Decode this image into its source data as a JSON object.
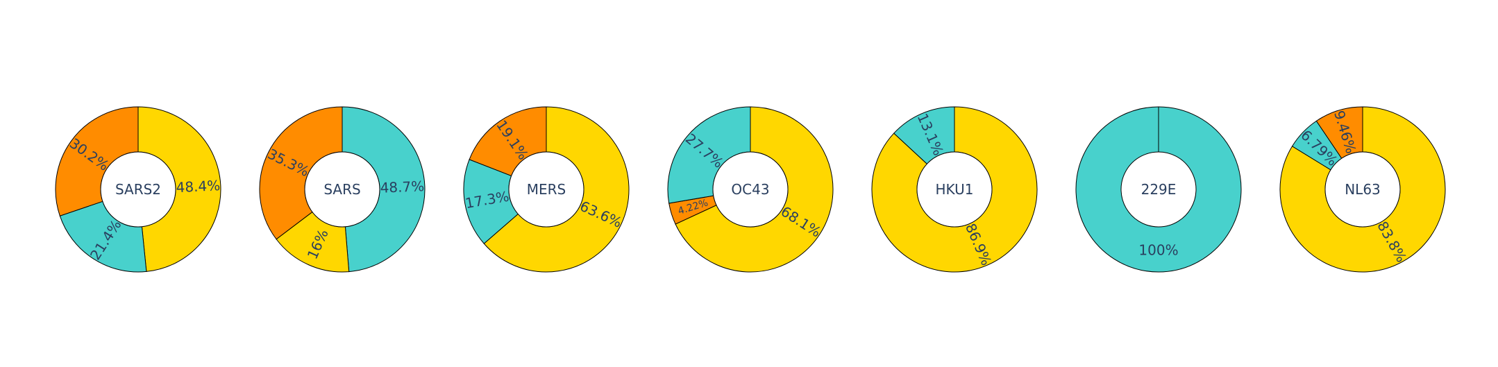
{
  "chart_data": [
    {
      "type": "pie",
      "hole": true,
      "center_label": "SARS2",
      "slices": [
        {
          "value": 48.4,
          "label": "48.4%",
          "color": "#FFD700"
        },
        {
          "value": 21.4,
          "label": "21.4%",
          "color": "#48D1CC"
        },
        {
          "value": 30.2,
          "label": "30.2%",
          "color": "#FF8C00"
        }
      ]
    },
    {
      "type": "pie",
      "hole": true,
      "center_label": "SARS",
      "slices": [
        {
          "value": 48.7,
          "label": "48.7%",
          "color": "#48D1CC"
        },
        {
          "value": 16,
          "label": "16%",
          "color": "#FFD700"
        },
        {
          "value": 35.3,
          "label": "35.3%",
          "color": "#FF8C00"
        }
      ]
    },
    {
      "type": "pie",
      "hole": true,
      "center_label": "MERS",
      "slices": [
        {
          "value": 63.6,
          "label": "63.6%",
          "color": "#FFD700"
        },
        {
          "value": 17.3,
          "label": "17.3%",
          "color": "#48D1CC"
        },
        {
          "value": 19.1,
          "label": "19.1%",
          "color": "#FF8C00"
        }
      ]
    },
    {
      "type": "pie",
      "hole": true,
      "center_label": "OC43",
      "slices": [
        {
          "value": 68.1,
          "label": "68.1%",
          "color": "#FFD700"
        },
        {
          "value": 4.22,
          "label": "4.22%",
          "color": "#FF8C00"
        },
        {
          "value": 27.7,
          "label": "27.7%",
          "color": "#48D1CC"
        }
      ]
    },
    {
      "type": "pie",
      "hole": true,
      "center_label": "HKU1",
      "slices": [
        {
          "value": 86.9,
          "label": "86.9%",
          "color": "#FFD700"
        },
        {
          "value": 13.1,
          "label": "13.1%",
          "color": "#48D1CC"
        }
      ]
    },
    {
      "type": "pie",
      "hole": true,
      "center_label": "229E",
      "slices": [
        {
          "value": 100,
          "label": "100%",
          "color": "#48D1CC"
        }
      ]
    },
    {
      "type": "pie",
      "hole": true,
      "center_label": "NL63",
      "slices": [
        {
          "value": 83.8,
          "label": "83.8%",
          "color": "#FFD700"
        },
        {
          "value": 6.79,
          "label": "6.79%",
          "color": "#48D1CC"
        },
        {
          "value": 9.46,
          "label": "9.46%",
          "color": "#FF8C00"
        }
      ]
    }
  ]
}
